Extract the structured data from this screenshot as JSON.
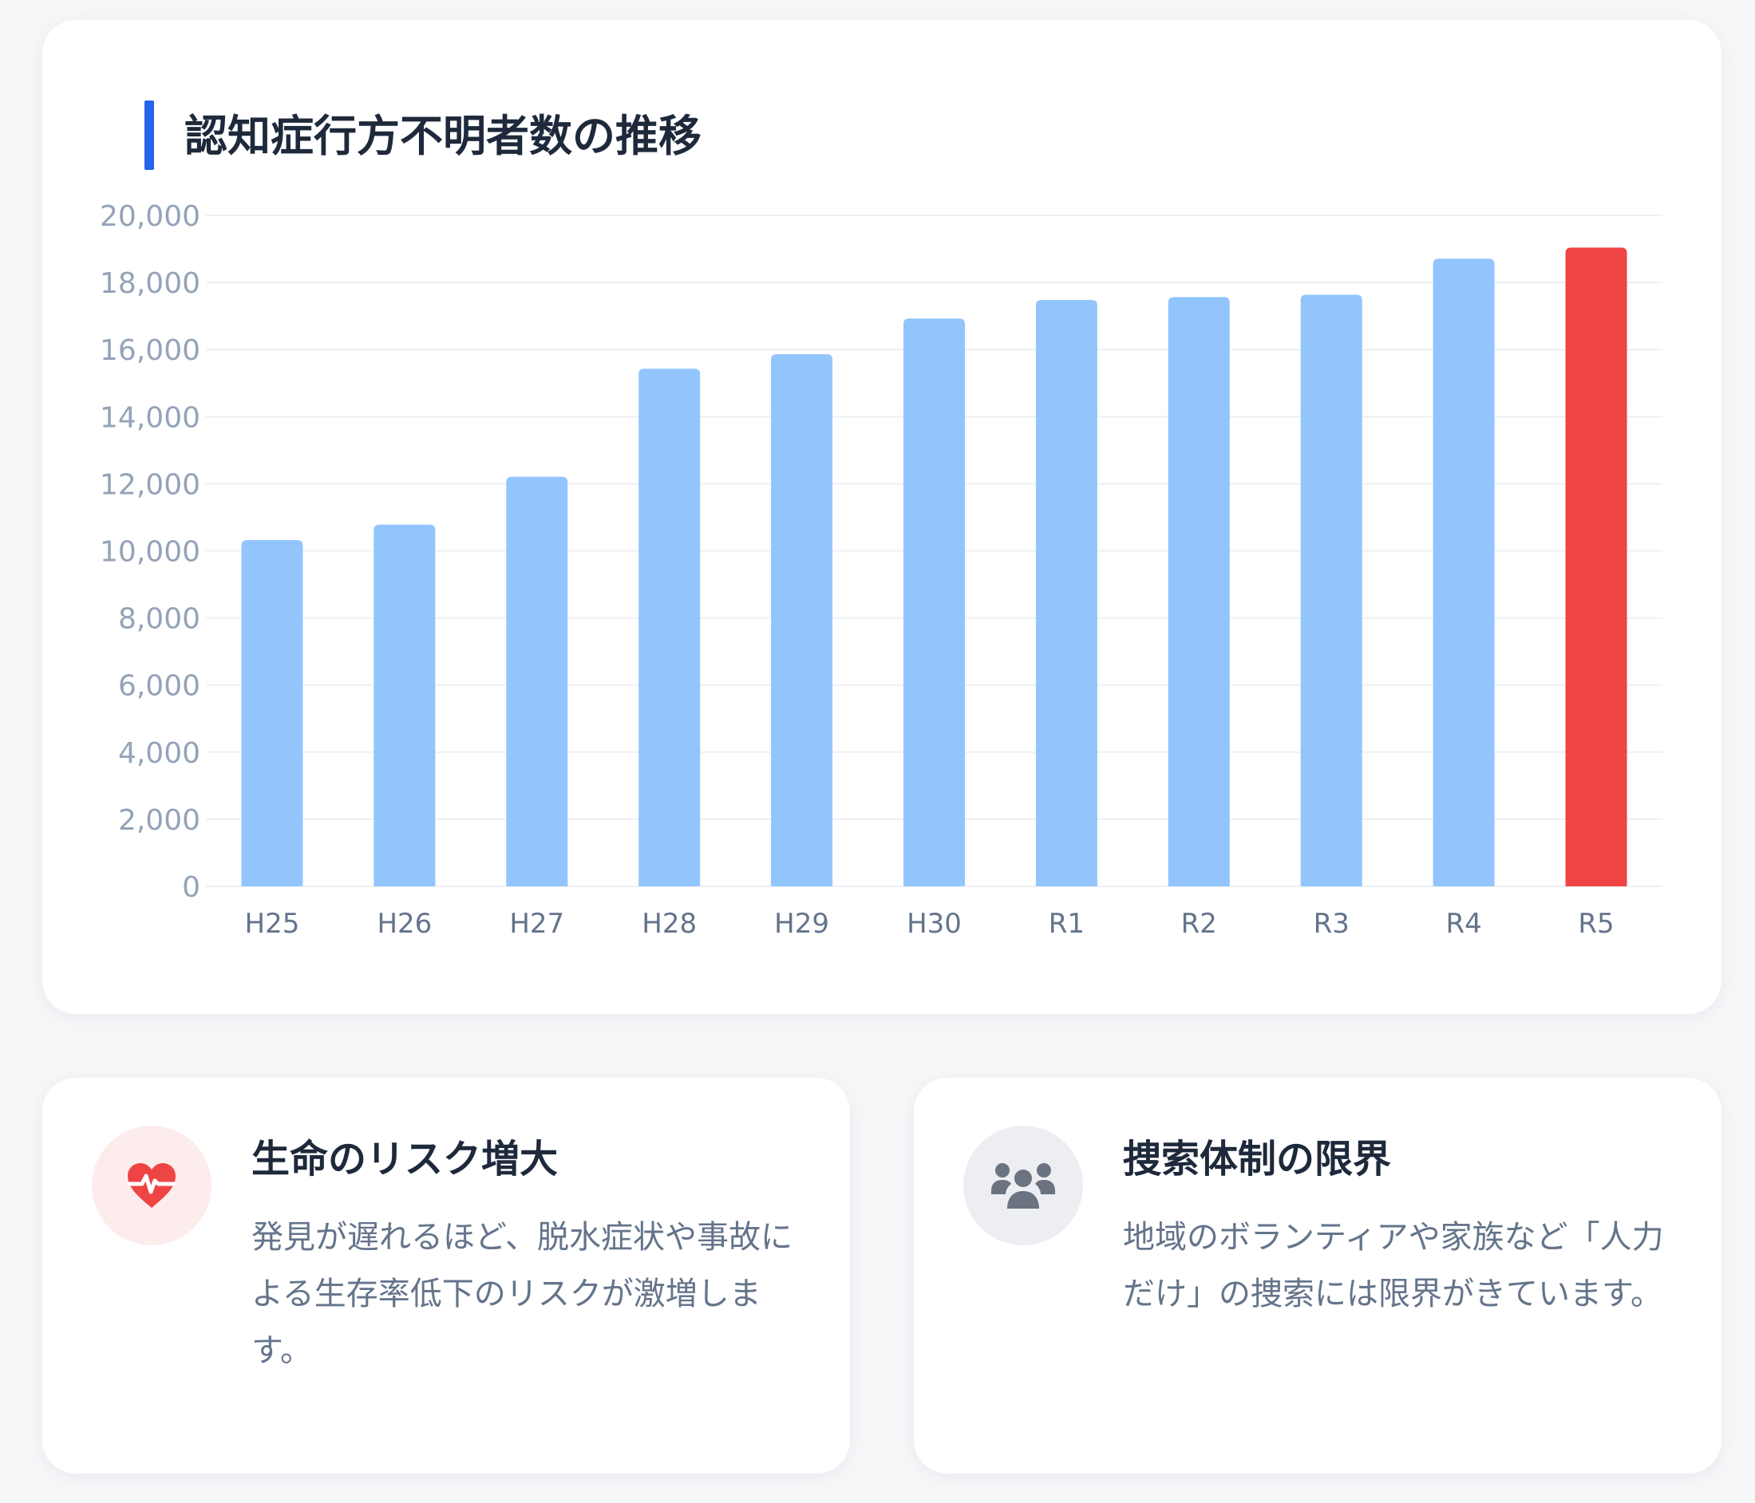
{
  "chart_card": {
    "title": "認知症行方不明者数の推移"
  },
  "chart_data": {
    "type": "bar",
    "title": "認知症行方不明者数の推移",
    "categories": [
      "H25",
      "H26",
      "H27",
      "H28",
      "H29",
      "H30",
      "R1",
      "R2",
      "R3",
      "R4",
      "R5"
    ],
    "values": [
      10322,
      10783,
      12208,
      15432,
      15863,
      16927,
      17479,
      17565,
      17636,
      18709,
      19039
    ],
    "ylim": [
      0,
      20000
    ],
    "yticks": [
      0,
      2000,
      4000,
      6000,
      8000,
      10000,
      12000,
      14000,
      16000,
      18000,
      20000
    ],
    "ytick_labels": [
      "0",
      "2,000",
      "4,000",
      "6,000",
      "8,000",
      "10,000",
      "12,000",
      "14,000",
      "16,000",
      "18,000",
      "20,000"
    ],
    "grid": true,
    "legend": "none",
    "bar_color": "#93c5fd",
    "highlight_index": 10,
    "highlight_color": "#ef4444"
  },
  "cards": [
    {
      "icon": "heartbeat-icon",
      "icon_color": "#ef4444",
      "title": "生命のリスク増大",
      "body": "発見が遅れるほど、脱水症状や事故による生存率低下のリスクが激増します。"
    },
    {
      "icon": "users-icon",
      "icon_color": "#6b7280",
      "title": "捜索体制の限界",
      "body": "地域のボランティアや家族など「人力だけ」の捜索には限界がきています。"
    }
  ]
}
